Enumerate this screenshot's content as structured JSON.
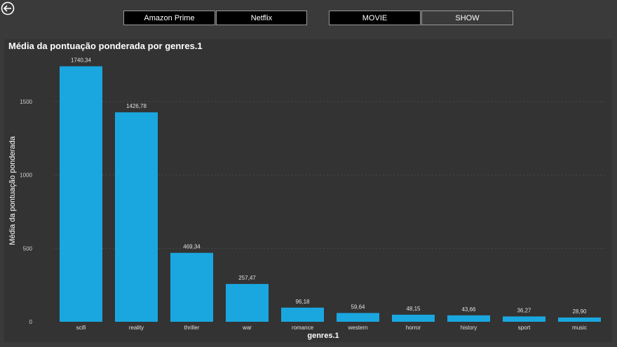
{
  "filters": {
    "platforms": [
      {
        "label": "Amazon Prime",
        "selected": false
      },
      {
        "label": "Netflix",
        "selected": false
      }
    ],
    "types": [
      {
        "label": "MOVIE",
        "selected": false
      },
      {
        "label": "SHOW",
        "selected": true
      }
    ]
  },
  "chart_data": {
    "type": "bar",
    "title": "Média da pontuação ponderada por genres.1",
    "xlabel": "genres.1",
    "ylabel": "Média da pontuação ponderada",
    "categories": [
      "scifi",
      "reality",
      "thriller",
      "war",
      "romance",
      "western",
      "horror",
      "history",
      "sport",
      "music"
    ],
    "values": [
      1740.34,
      1426.78,
      469.34,
      257.47,
      96.18,
      59.64,
      48.15,
      43.66,
      36.27,
      28.9
    ],
    "value_labels": [
      "1740,34",
      "1426,78",
      "469,34",
      "257,47",
      "96,18",
      "59,64",
      "48,15",
      "43,66",
      "36,27",
      "28,90"
    ],
    "yticks": [
      0,
      500,
      1000,
      1500
    ],
    "ylim": [
      0,
      1800
    ],
    "grid": true,
    "bar_color": "#1aa7e0"
  }
}
